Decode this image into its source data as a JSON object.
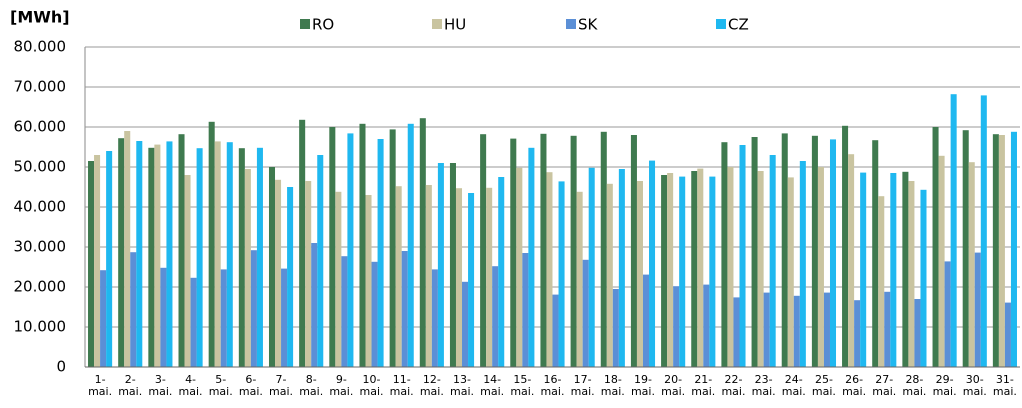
{
  "chart_data": {
    "type": "bar",
    "y_label": "[MWh]",
    "categories": [
      "1- mai.",
      "2- mai.",
      "3- mai.",
      "4- mai.",
      "5- mai.",
      "6- mai.",
      "7- mai.",
      "8- mai.",
      "9- mai.",
      "10- mai.",
      "11- mai.",
      "12- mai.",
      "13- mai.",
      "14- mai.",
      "15- mai.",
      "16- mai.",
      "17- mai.",
      "18- mai.",
      "19- mai.",
      "20- mai.",
      "21- mai.",
      "22- mai.",
      "23- mai.",
      "24- mai.",
      "25- mai.",
      "26- mai.",
      "27- mai.",
      "28- mai.",
      "29- mai.",
      "30- mai.",
      "31- mai."
    ],
    "series": [
      {
        "name": "RO",
        "color": "#3f7a4f",
        "values": [
          51500,
          57200,
          54800,
          58200,
          61300,
          54700,
          50000,
          61800,
          60000,
          60800,
          59400,
          62200,
          51000,
          58200,
          57100,
          58300,
          57800,
          58800,
          58000,
          48000,
          49000,
          56200,
          57500,
          58400,
          57800,
          60300,
          56700,
          48800,
          60000,
          59200,
          58200
        ]
      },
      {
        "name": "HU",
        "color": "#c9c4a0",
        "values": [
          53000,
          59000,
          55600,
          48000,
          56400,
          49500,
          46800,
          46500,
          43800,
          43000,
          45200,
          45500,
          44700,
          44800,
          49800,
          48700,
          43800,
          45800,
          46500,
          48500,
          49600,
          50000,
          49000,
          47400,
          50000,
          53200,
          42700,
          46500,
          52800,
          51200,
          58000
        ]
      },
      {
        "name": "SK",
        "color": "#5b8fd6",
        "values": [
          24200,
          28700,
          24800,
          22300,
          24400,
          29200,
          24600,
          31000,
          27700,
          26300,
          29000,
          24400,
          21300,
          25200,
          28500,
          18100,
          26800,
          19500,
          23100,
          20200,
          20600,
          17400,
          18600,
          17800,
          18600,
          16700,
          18800,
          17000,
          26400,
          28600,
          16100
        ]
      },
      {
        "name": "CZ",
        "color": "#1fb8f0",
        "values": [
          54000,
          56500,
          56400,
          54700,
          56200,
          54800,
          45000,
          53000,
          58400,
          57000,
          60800,
          51000,
          43500,
          47500,
          54800,
          46400,
          49800,
          49500,
          51600,
          47600,
          47600,
          55500,
          53000,
          51500,
          56900,
          48600,
          48500,
          44300,
          68200,
          67900,
          58800
        ]
      }
    ],
    "ylim": [
      0,
      80000
    ],
    "yticks": [
      {
        "value": 0,
        "label": "0"
      },
      {
        "value": 10000,
        "label": "10.000"
      },
      {
        "value": 20000,
        "label": "20.000"
      },
      {
        "value": 30000,
        "label": "30.000"
      },
      {
        "value": 40000,
        "label": "40.000"
      },
      {
        "value": 50000,
        "label": "50.000"
      },
      {
        "value": 60000,
        "label": "60.000"
      },
      {
        "value": 70000,
        "label": "70.000"
      },
      {
        "value": 80000,
        "label": "80.000"
      }
    ],
    "grid": true,
    "legend": "top"
  }
}
